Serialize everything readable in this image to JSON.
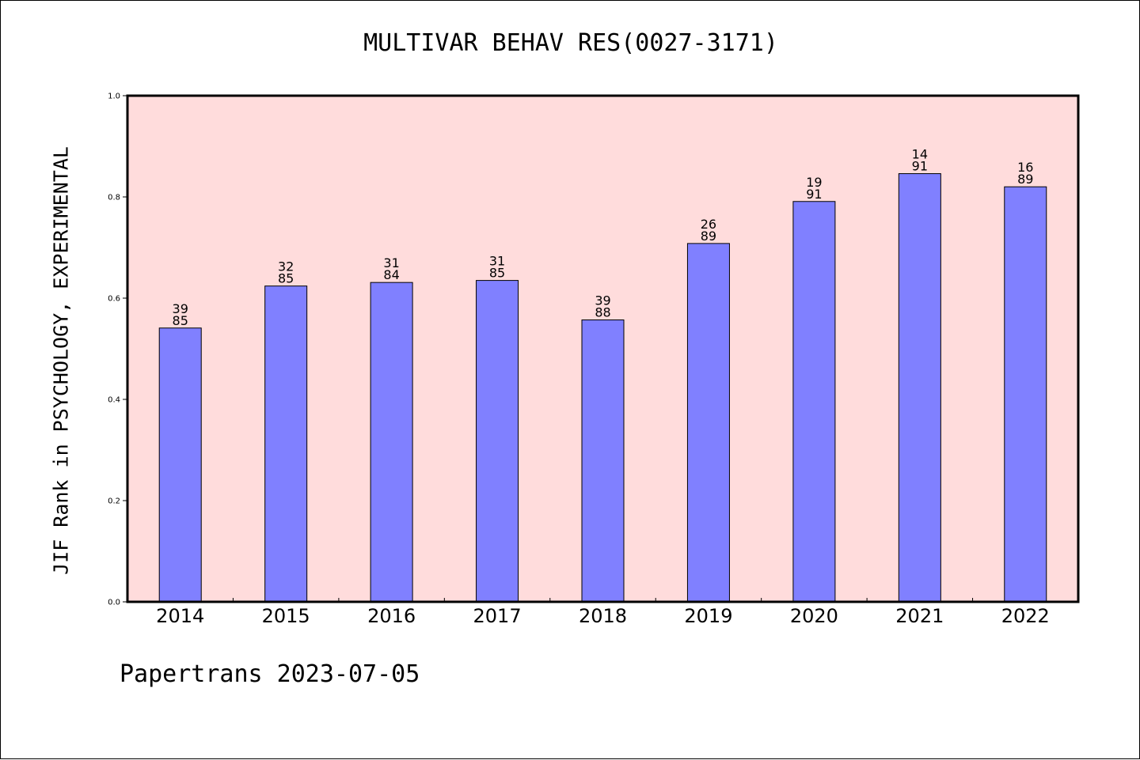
{
  "chart_data": {
    "type": "bar",
    "title": "MULTIVAR BEHAV RES(0027-3171)",
    "ylabel": "JIF Rank in PSYCHOLOGY, EXPERIMENTAL",
    "xlabel": "",
    "ylim": [
      0.0,
      1.0
    ],
    "yticks": [
      "0.0",
      "0.2",
      "0.4",
      "0.6",
      "0.8",
      "1.0"
    ],
    "categories": [
      "2014",
      "2015",
      "2016",
      "2017",
      "2018",
      "2019",
      "2020",
      "2021",
      "2022"
    ],
    "values": [
      0.541,
      0.624,
      0.631,
      0.635,
      0.557,
      0.708,
      0.791,
      0.846,
      0.82
    ],
    "rank": [
      "39",
      "32",
      "31",
      "31",
      "39",
      "26",
      "19",
      "14",
      "16"
    ],
    "total": [
      "85",
      "85",
      "84",
      "85",
      "88",
      "89",
      "91",
      "91",
      "89"
    ],
    "bar_color": "#8080ff",
    "plot_background": "#ffdcdc",
    "grid": false,
    "legend": "none"
  },
  "footer": "Papertrans 2023-07-05"
}
